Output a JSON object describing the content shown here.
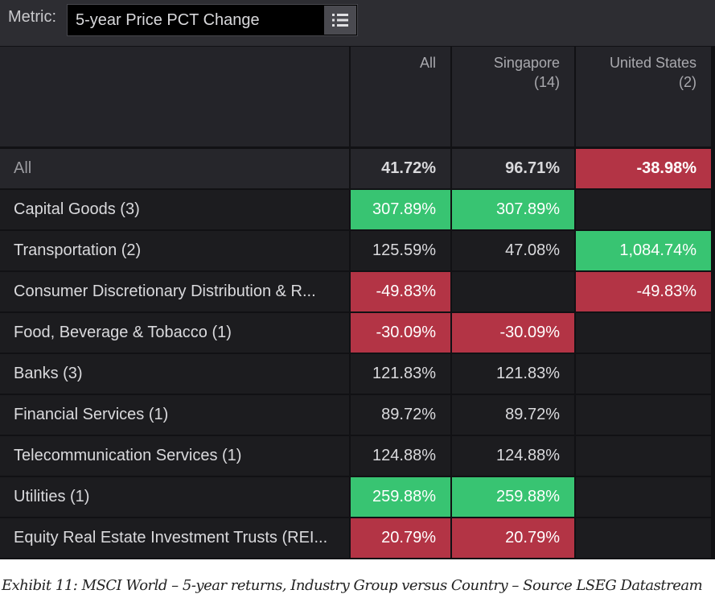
{
  "metric": {
    "label": "Metric:",
    "value": "5-year Price PCT Change",
    "menu_icon": "list-icon"
  },
  "columns": [
    {
      "label": "All",
      "count": ""
    },
    {
      "label": "Singapore",
      "count": "(14)"
    },
    {
      "label": "United States",
      "count": "(2)"
    }
  ],
  "rows": [
    {
      "label": "All",
      "values": [
        "41.72%",
        "96.71%",
        "-38.98%"
      ],
      "states": [
        "",
        "",
        "neg"
      ]
    },
    {
      "label": "Capital Goods (3)",
      "values": [
        "307.89%",
        "307.89%",
        ""
      ],
      "states": [
        "pos",
        "pos",
        ""
      ]
    },
    {
      "label": "Transportation (2)",
      "values": [
        "125.59%",
        "47.08%",
        "1,084.74%"
      ],
      "states": [
        "",
        "",
        "pos"
      ]
    },
    {
      "label": "Consumer Discretionary Distribution & R...",
      "values": [
        "-49.83%",
        "",
        "-49.83%"
      ],
      "states": [
        "neg",
        "",
        "neg"
      ]
    },
    {
      "label": "Food, Beverage & Tobacco (1)",
      "values": [
        "-30.09%",
        "-30.09%",
        ""
      ],
      "states": [
        "neg",
        "neg",
        ""
      ]
    },
    {
      "label": "Banks (3)",
      "values": [
        "121.83%",
        "121.83%",
        ""
      ],
      "states": [
        "",
        "",
        ""
      ]
    },
    {
      "label": "Financial Services (1)",
      "values": [
        "89.72%",
        "89.72%",
        ""
      ],
      "states": [
        "",
        "",
        ""
      ]
    },
    {
      "label": "Telecommunication Services (1)",
      "values": [
        "124.88%",
        "124.88%",
        ""
      ],
      "states": [
        "",
        "",
        ""
      ]
    },
    {
      "label": "Utilities (1)",
      "values": [
        "259.88%",
        "259.88%",
        ""
      ],
      "states": [
        "pos",
        "pos",
        ""
      ]
    },
    {
      "label": "Equity Real Estate Investment Trusts (REI...",
      "values": [
        "20.79%",
        "20.79%",
        ""
      ],
      "states": [
        "neg",
        "neg",
        ""
      ]
    }
  ],
  "colors": {
    "positive": "#38c472",
    "negative": "#b33445"
  },
  "caption": "Exhibit 11: MSCI World – 5-year returns, Industry Group versus Country – Source LSEG Datastream"
}
